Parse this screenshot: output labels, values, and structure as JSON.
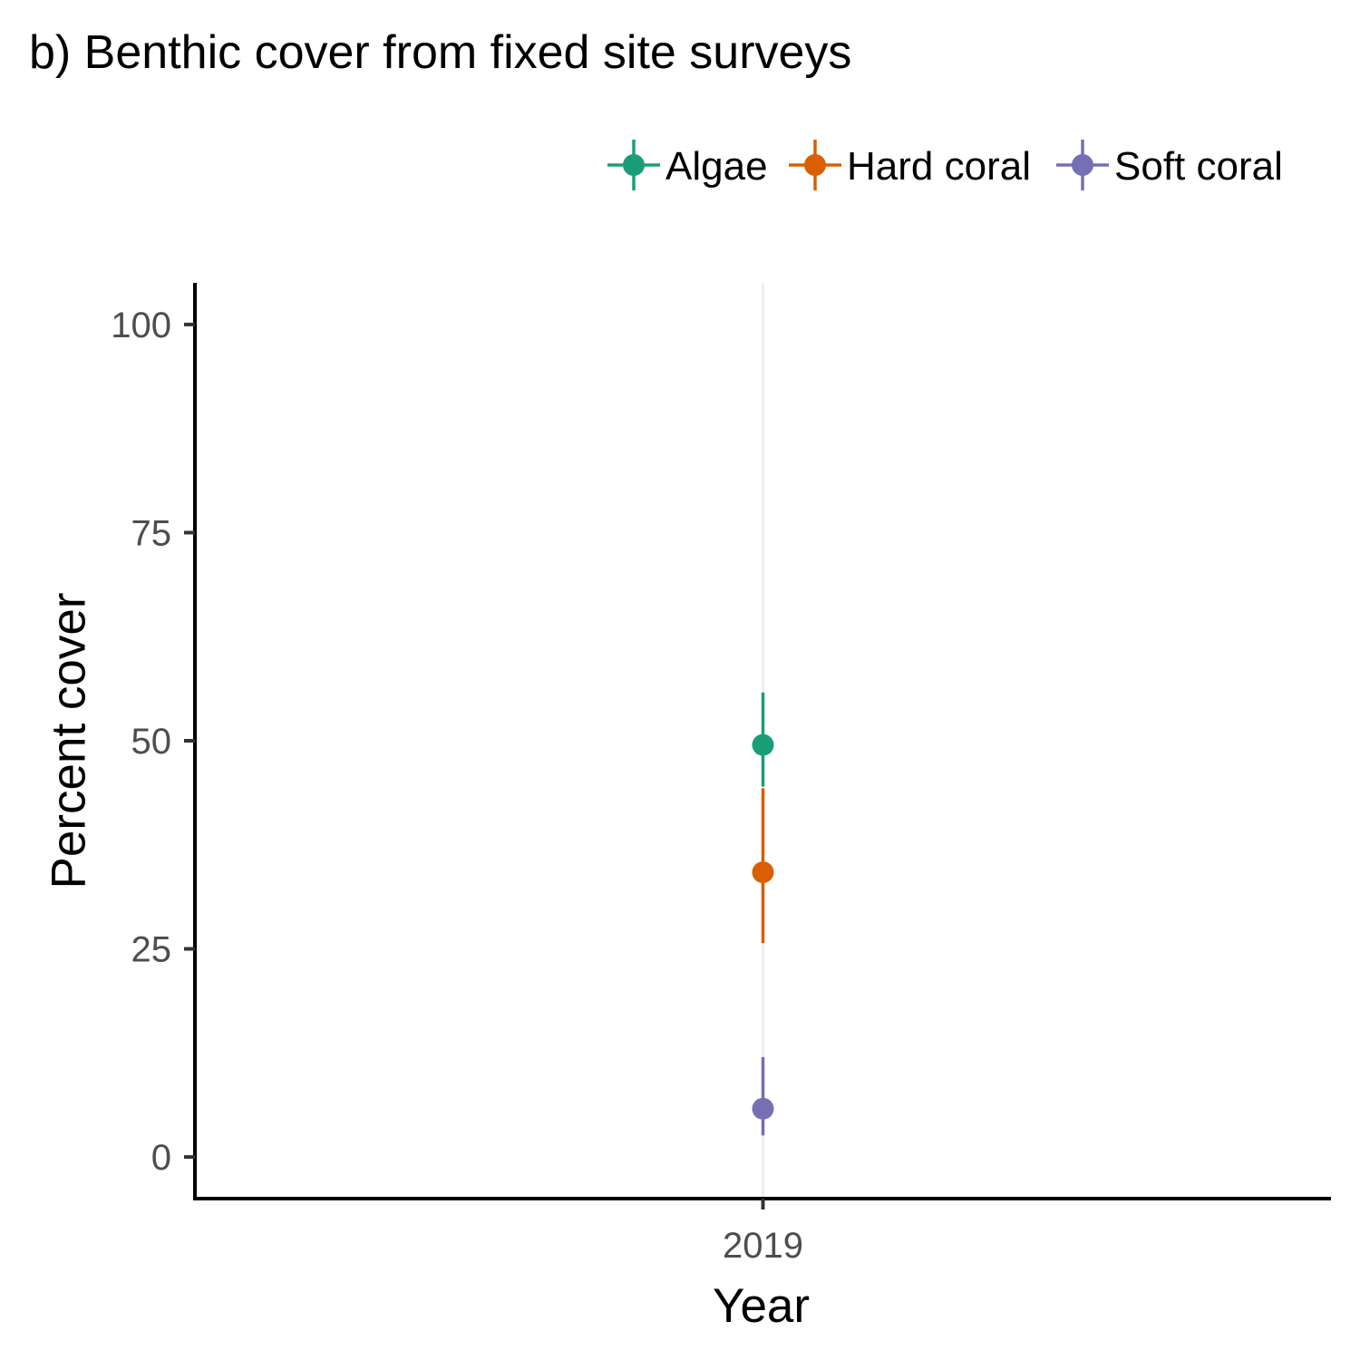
{
  "chart_data": {
    "type": "scatter",
    "title": "b) Benthic cover from fixed site surveys",
    "xlabel": "Year",
    "ylabel": "Percent cover",
    "categories": [
      "2019"
    ],
    "ylim": [
      -5,
      105
    ],
    "yticks": [
      0,
      25,
      50,
      75,
      100
    ],
    "grid": "vertical major gridline only",
    "legend_position": "top",
    "series": [
      {
        "name": "Algae",
        "color": "#1b9e77",
        "values": [
          49.5
        ],
        "error_low": [
          44.5
        ],
        "error_high": [
          55.8
        ]
      },
      {
        "name": "Hard coral",
        "color": "#d95f02",
        "values": [
          34.2
        ],
        "error_low": [
          25.7
        ],
        "error_high": [
          44.3
        ]
      },
      {
        "name": "Soft coral",
        "color": "#7570b3",
        "values": [
          5.8
        ],
        "error_low": [
          2.6
        ],
        "error_high": [
          12.0
        ]
      }
    ]
  }
}
